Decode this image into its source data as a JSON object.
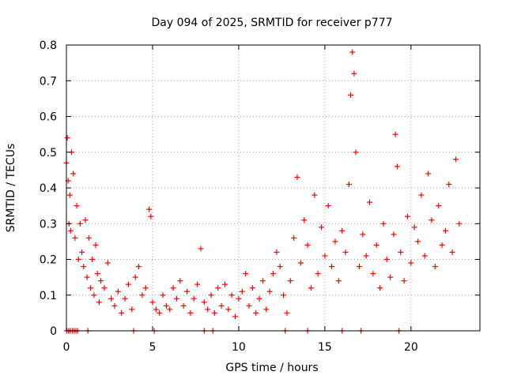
{
  "chart_data": {
    "type": "scatter",
    "title": "Day 094 of 2025, SRMTID for receiver p777",
    "xlabel": "GPS time / hours",
    "ylabel": "SRMTID / TECUs",
    "xlim": [
      0,
      24
    ],
    "ylim": [
      0,
      0.8
    ],
    "x_ticks": [
      0,
      5,
      10,
      15,
      20
    ],
    "x_tick_labels": [
      "0",
      "5",
      "10",
      "15",
      "20"
    ],
    "y_ticks": [
      0,
      0.1,
      0.2,
      0.3,
      0.4,
      0.5,
      0.6,
      0.7,
      0.8
    ],
    "y_tick_labels": [
      "0",
      "0.1",
      "0.2",
      "0.3",
      "0.4",
      "0.5",
      "0.6",
      "0.7",
      "0.8"
    ],
    "grid": true,
    "marker": "+",
    "color": "#ff0000",
    "series": [
      {
        "name": "SRMTID",
        "x": [
          0.0,
          0.05,
          0.1,
          0.15,
          0.2,
          0.25,
          0.3,
          0.4,
          0.5,
          0.6,
          0.7,
          0.8,
          0.9,
          1.0,
          1.1,
          1.2,
          1.3,
          1.4,
          1.5,
          1.6,
          1.7,
          1.8,
          1.9,
          2.0,
          2.2,
          2.4,
          2.6,
          2.8,
          3.0,
          3.2,
          3.4,
          3.6,
          3.8,
          4.0,
          4.2,
          4.4,
          4.6,
          4.8,
          4.9,
          5.0,
          5.2,
          5.4,
          5.6,
          5.8,
          6.0,
          6.2,
          6.4,
          6.6,
          6.8,
          7.0,
          7.2,
          7.4,
          7.6,
          7.8,
          8.0,
          8.2,
          8.4,
          8.6,
          8.8,
          9.0,
          9.2,
          9.4,
          9.6,
          9.8,
          10.0,
          10.2,
          10.4,
          10.6,
          10.8,
          11.0,
          11.2,
          11.4,
          11.6,
          11.8,
          12.0,
          12.2,
          12.4,
          12.6,
          12.8,
          13.0,
          13.2,
          13.4,
          13.6,
          13.8,
          14.0,
          14.2,
          14.4,
          14.6,
          14.8,
          15.0,
          15.2,
          15.4,
          15.6,
          15.8,
          16.0,
          16.2,
          16.4,
          16.5,
          16.6,
          16.7,
          16.8,
          17.0,
          17.2,
          17.4,
          17.6,
          17.8,
          18.0,
          18.2,
          18.4,
          18.6,
          18.8,
          19.0,
          19.1,
          19.2,
          19.4,
          19.6,
          19.8,
          20.0,
          20.2,
          20.4,
          20.6,
          20.8,
          21.0,
          21.2,
          21.4,
          21.6,
          21.8,
          22.0,
          22.2,
          22.4,
          22.6,
          22.8,
          0.02,
          0.12,
          0.22,
          0.35,
          0.45,
          0.55,
          0.65,
          1.25,
          3.9,
          5.1,
          8.0,
          8.5,
          12.7,
          14.0,
          16.0,
          17.1,
          19.3
        ],
        "values": [
          0.47,
          0.54,
          0.42,
          0.3,
          0.38,
          0.28,
          0.5,
          0.44,
          0.26,
          0.35,
          0.2,
          0.3,
          0.22,
          0.18,
          0.31,
          0.15,
          0.26,
          0.12,
          0.2,
          0.1,
          0.24,
          0.16,
          0.08,
          0.14,
          0.12,
          0.19,
          0.09,
          0.07,
          0.11,
          0.05,
          0.09,
          0.13,
          0.06,
          0.15,
          0.18,
          0.1,
          0.12,
          0.34,
          0.32,
          0.08,
          0.06,
          0.05,
          0.1,
          0.07,
          0.06,
          0.12,
          0.09,
          0.14,
          0.07,
          0.11,
          0.05,
          0.09,
          0.13,
          0.23,
          0.08,
          0.06,
          0.1,
          0.05,
          0.12,
          0.07,
          0.13,
          0.06,
          0.1,
          0.04,
          0.09,
          0.11,
          0.16,
          0.07,
          0.12,
          0.05,
          0.09,
          0.14,
          0.06,
          0.11,
          0.16,
          0.22,
          0.18,
          0.1,
          0.05,
          0.14,
          0.26,
          0.43,
          0.19,
          0.31,
          0.24,
          0.12,
          0.38,
          0.16,
          0.29,
          0.21,
          0.35,
          0.18,
          0.25,
          0.14,
          0.28,
          0.22,
          0.41,
          0.66,
          0.78,
          0.72,
          0.5,
          0.18,
          0.27,
          0.21,
          0.36,
          0.16,
          0.24,
          0.12,
          0.3,
          0.2,
          0.15,
          0.27,
          0.55,
          0.46,
          0.22,
          0.14,
          0.32,
          0.19,
          0.29,
          0.25,
          0.38,
          0.21,
          0.44,
          0.31,
          0.18,
          0.35,
          0.24,
          0.28,
          0.41,
          0.22,
          0.48,
          0.3,
          0.0,
          0.0,
          0.0,
          0.0,
          0.0,
          0.0,
          0.0,
          0.0,
          0.0,
          0.0,
          0.0,
          0.0,
          0.0,
          0.0,
          0.0,
          0.0,
          0.0
        ]
      }
    ]
  }
}
